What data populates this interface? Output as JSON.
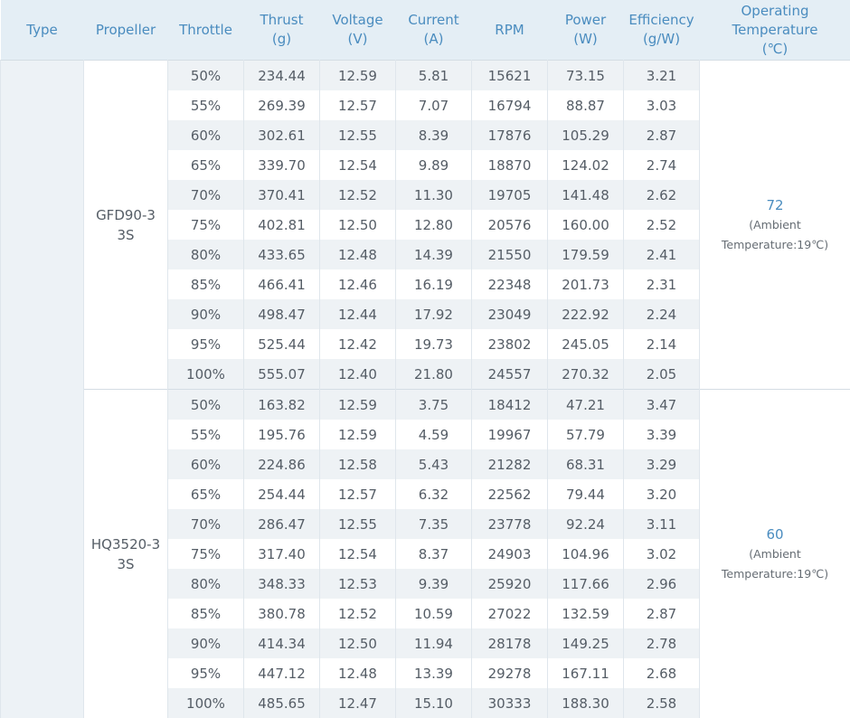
{
  "columns": [
    {
      "line1": "Type",
      "line2": ""
    },
    {
      "line1": "Propeller",
      "line2": ""
    },
    {
      "line1": "Throttle",
      "line2": ""
    },
    {
      "line1": "Thrust",
      "line2": "(g)"
    },
    {
      "line1": "Voltage",
      "line2": "(V)"
    },
    {
      "line1": "Current",
      "line2": "(A)"
    },
    {
      "line1": "RPM",
      "line2": ""
    },
    {
      "line1": "Power",
      "line2": "(W)"
    },
    {
      "line1": "Efficiency",
      "line2": "(g/W)"
    },
    {
      "line1": "Operating",
      "line2": "Temperature",
      "line3": "(℃)"
    }
  ],
  "groups": [
    {
      "propeller_line1": "GFD90-3",
      "propeller_line2": "3S",
      "temp_value": "72",
      "temp_note_line1": "(Ambient",
      "temp_note_line2": "Temperature:19℃)",
      "rows": [
        [
          "50%",
          "234.44",
          "12.59",
          "5.81",
          "15621",
          "73.15",
          "3.21"
        ],
        [
          "55%",
          "269.39",
          "12.57",
          "7.07",
          "16794",
          "88.87",
          "3.03"
        ],
        [
          "60%",
          "302.61",
          "12.55",
          "8.39",
          "17876",
          "105.29",
          "2.87"
        ],
        [
          "65%",
          "339.70",
          "12.54",
          "9.89",
          "18870",
          "124.02",
          "2.74"
        ],
        [
          "70%",
          "370.41",
          "12.52",
          "11.30",
          "19705",
          "141.48",
          "2.62"
        ],
        [
          "75%",
          "402.81",
          "12.50",
          "12.80",
          "20576",
          "160.00",
          "2.52"
        ],
        [
          "80%",
          "433.65",
          "12.48",
          "14.39",
          "21550",
          "179.59",
          "2.41"
        ],
        [
          "85%",
          "466.41",
          "12.46",
          "16.19",
          "22348",
          "201.73",
          "2.31"
        ],
        [
          "90%",
          "498.47",
          "12.44",
          "17.92",
          "23049",
          "222.92",
          "2.24"
        ],
        [
          "95%",
          "525.44",
          "12.42",
          "19.73",
          "23802",
          "245.05",
          "2.14"
        ],
        [
          "100%",
          "555.07",
          "12.40",
          "21.80",
          "24557",
          "270.32",
          "2.05"
        ]
      ]
    },
    {
      "propeller_line1": "HQ3520-3",
      "propeller_line2": "3S",
      "temp_value": "60",
      "temp_note_line1": "(Ambient",
      "temp_note_line2": "Temperature:19℃)",
      "rows": [
        [
          "50%",
          "163.82",
          "12.59",
          "3.75",
          "18412",
          "47.21",
          "3.47"
        ],
        [
          "55%",
          "195.76",
          "12.59",
          "4.59",
          "19967",
          "57.79",
          "3.39"
        ],
        [
          "60%",
          "224.86",
          "12.58",
          "5.43",
          "21282",
          "68.31",
          "3.29"
        ],
        [
          "65%",
          "254.44",
          "12.57",
          "6.32",
          "22562",
          "79.44",
          "3.20"
        ],
        [
          "70%",
          "286.47",
          "12.55",
          "7.35",
          "23778",
          "92.24",
          "3.11"
        ],
        [
          "75%",
          "317.40",
          "12.54",
          "8.37",
          "24903",
          "104.96",
          "3.02"
        ],
        [
          "80%",
          "348.33",
          "12.53",
          "9.39",
          "25920",
          "117.66",
          "2.96"
        ],
        [
          "85%",
          "380.78",
          "12.52",
          "10.59",
          "27022",
          "132.59",
          "2.87"
        ],
        [
          "90%",
          "414.34",
          "12.50",
          "11.94",
          "28178",
          "149.25",
          "2.78"
        ],
        [
          "95%",
          "447.12",
          "12.48",
          "13.39",
          "29278",
          "167.11",
          "2.68"
        ],
        [
          "100%",
          "485.65",
          "12.47",
          "15.10",
          "30333",
          "188.30",
          "2.58"
        ]
      ]
    }
  ],
  "colors": {
    "header_bg": "#e4eef5",
    "header_text": "#4a8cbf",
    "zebra_bg": "#eef2f5",
    "type_column_bg": "#edf2f6",
    "body_text": "#555d66",
    "temp_value_text": "#4a8cbf"
  }
}
